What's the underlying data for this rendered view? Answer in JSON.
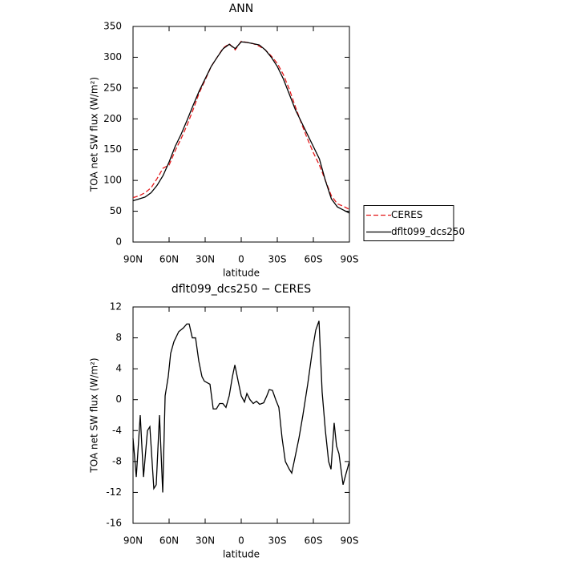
{
  "chart_data": [
    {
      "type": "line",
      "title": "ANN",
      "x_label": "latitude",
      "y_label": "TOA net SW flux (W/m²)",
      "x": [
        90,
        85,
        80,
        75,
        70,
        65,
        60,
        55,
        50,
        45,
        40,
        35,
        30,
        25,
        20,
        15,
        10,
        5,
        0,
        -5,
        -10,
        -15,
        -20,
        -25,
        -30,
        -35,
        -40,
        -45,
        -50,
        -55,
        -60,
        -65,
        -70,
        -75,
        -80,
        -85,
        -90
      ],
      "series": [
        {
          "name": "CERES",
          "color": "#e41a1c",
          "dashed": true,
          "values": [
            72,
            75,
            80,
            88,
            103,
            120,
            125,
            148,
            168,
            190,
            215,
            242,
            263,
            285,
            300,
            315,
            322,
            312,
            326,
            324,
            322,
            318,
            312,
            302,
            290,
            272,
            248,
            220,
            193,
            168,
            145,
            125,
            100,
            75,
            62,
            58,
            53
          ]
        },
        {
          "name": "dflt099_dcs250",
          "color": "#000000",
          "dashed": false,
          "values": [
            67,
            70,
            73,
            80,
            92,
            108,
            130,
            155,
            175,
            198,
            222,
            245,
            265,
            285,
            300,
            314,
            321,
            314,
            325,
            324,
            322,
            320,
            312,
            300,
            285,
            265,
            240,
            215,
            195,
            175,
            155,
            135,
            100,
            70,
            57,
            52,
            47
          ]
        }
      ],
      "xlim": [
        90,
        -90
      ],
      "xticks": [
        {
          "value": 90,
          "label": "90N"
        },
        {
          "value": 60,
          "label": "60N"
        },
        {
          "value": 30,
          "label": "30N"
        },
        0,
        {
          "value": -30,
          "label": "30S"
        },
        {
          "value": -60,
          "label": "60S"
        },
        {
          "value": -90,
          "label": "90S"
        }
      ],
      "ylim": [
        0,
        350
      ],
      "yticks": [
        0,
        50,
        100,
        150,
        200,
        250,
        300,
        350
      ],
      "legend": "right"
    },
    {
      "type": "line",
      "title": "dflt099_dcs250 − CERES",
      "x_label": "latitude",
      "y_label": "TOA net SW flux (W/m²)",
      "x": [
        90,
        87.3,
        84,
        81.3,
        78,
        76,
        72.7,
        70.7,
        68,
        65.3,
        63.3,
        60.7,
        58.7,
        56,
        52,
        48,
        45.3,
        43.3,
        40.7,
        38,
        35.3,
        32.7,
        30.7,
        26,
        23.3,
        20.7,
        18,
        15.3,
        12.7,
        10,
        7.3,
        5.3,
        2.7,
        0,
        -2.7,
        -4.7,
        -7.3,
        -10,
        -12.7,
        -15.3,
        -18.7,
        -21.3,
        -23.3,
        -26,
        -28.7,
        -31.3,
        -34,
        -36.7,
        -40,
        -42,
        -44.7,
        -48,
        -51.3,
        -55.3,
        -59.3,
        -62,
        -64.7,
        -67.3,
        -70,
        -72.7,
        -74.7,
        -77.3,
        -79.3,
        -81.3,
        -84.7,
        -87.3,
        -90
      ],
      "values": [
        -5,
        -10,
        -2,
        -10,
        -4,
        -3.5,
        -11.5,
        -11,
        -2,
        -12,
        0.5,
        3,
        6,
        7.5,
        8.8,
        9.3,
        9.8,
        9.8,
        8,
        8,
        5,
        3,
        2.4,
        2,
        -1.2,
        -1.2,
        -0.5,
        -0.5,
        -1,
        0.5,
        3,
        4.5,
        2.5,
        0.5,
        -0.3,
        0.8,
        0,
        -0.5,
        -0.2,
        -0.6,
        -0.4,
        0.5,
        1.3,
        1.2,
        0,
        -1,
        -5,
        -8,
        -9,
        -9.5,
        -7.5,
        -5,
        -2,
        2,
        6.5,
        9,
        10.2,
        1,
        -4,
        -8,
        -9,
        -3,
        -6,
        -7,
        -11,
        -9.5,
        -8
      ],
      "color": "#000000",
      "xlim": [
        90,
        -90
      ],
      "xticks": [
        {
          "value": 90,
          "label": "90N"
        },
        {
          "value": 60,
          "label": "60N"
        },
        {
          "value": 30,
          "label": "30N"
        },
        0,
        {
          "value": -30,
          "label": "30S"
        },
        {
          "value": -60,
          "label": "60S"
        },
        {
          "value": -90,
          "label": "90S"
        }
      ],
      "ylim": [
        -16,
        12
      ],
      "yticks": [
        -16,
        -12,
        -8,
        -4,
        0,
        4,
        8,
        12
      ]
    }
  ]
}
